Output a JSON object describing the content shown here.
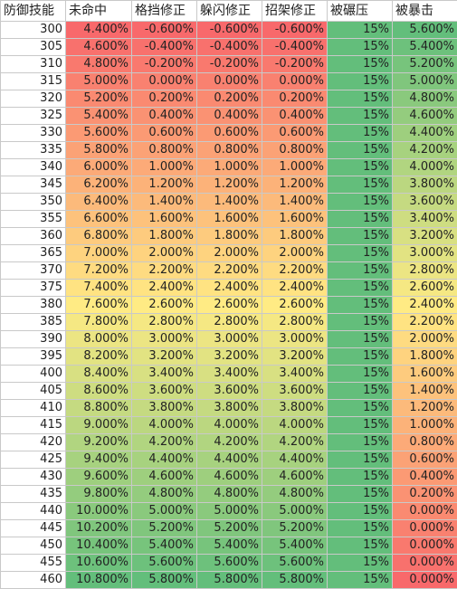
{
  "headers": [
    "防御技能",
    "未命中",
    "格挡修正",
    "躲闪修正",
    "招架修正",
    "被碾压",
    "被暴击"
  ],
  "colors": {
    "red": "#f8696b",
    "yellow": "#ffeb84",
    "green": "#63be7b",
    "grid": "#c9c9c9"
  },
  "rows": [
    [
      "300",
      "4.400%",
      "-0.600%",
      "-0.600%",
      "-0.600%",
      "15%",
      "5.600%"
    ],
    [
      "305",
      "4.600%",
      "-0.400%",
      "-0.400%",
      "-0.400%",
      "15%",
      "5.400%"
    ],
    [
      "310",
      "4.800%",
      "-0.200%",
      "-0.200%",
      "-0.200%",
      "15%",
      "5.200%"
    ],
    [
      "315",
      "5.000%",
      "0.000%",
      "0.000%",
      "0.000%",
      "15%",
      "5.000%"
    ],
    [
      "320",
      "5.200%",
      "0.200%",
      "0.200%",
      "0.200%",
      "15%",
      "4.800%"
    ],
    [
      "325",
      "5.400%",
      "0.400%",
      "0.400%",
      "0.400%",
      "15%",
      "4.600%"
    ],
    [
      "330",
      "5.600%",
      "0.600%",
      "0.600%",
      "0.600%",
      "15%",
      "4.400%"
    ],
    [
      "335",
      "5.800%",
      "0.800%",
      "0.800%",
      "0.800%",
      "15%",
      "4.200%"
    ],
    [
      "340",
      "6.000%",
      "1.000%",
      "1.000%",
      "1.000%",
      "15%",
      "4.000%"
    ],
    [
      "345",
      "6.200%",
      "1.200%",
      "1.200%",
      "1.200%",
      "15%",
      "3.800%"
    ],
    [
      "350",
      "6.400%",
      "1.400%",
      "1.400%",
      "1.400%",
      "15%",
      "3.600%"
    ],
    [
      "355",
      "6.600%",
      "1.600%",
      "1.600%",
      "1.600%",
      "15%",
      "3.400%"
    ],
    [
      "360",
      "6.800%",
      "1.800%",
      "1.800%",
      "1.800%",
      "15%",
      "3.200%"
    ],
    [
      "365",
      "7.000%",
      "2.000%",
      "2.000%",
      "2.000%",
      "15%",
      "3.000%"
    ],
    [
      "370",
      "7.200%",
      "2.200%",
      "2.200%",
      "2.200%",
      "15%",
      "2.800%"
    ],
    [
      "375",
      "7.400%",
      "2.400%",
      "2.400%",
      "2.400%",
      "15%",
      "2.600%"
    ],
    [
      "380",
      "7.600%",
      "2.600%",
      "2.600%",
      "2.600%",
      "15%",
      "2.400%"
    ],
    [
      "385",
      "7.800%",
      "2.800%",
      "2.800%",
      "2.800%",
      "15%",
      "2.200%"
    ],
    [
      "390",
      "8.000%",
      "3.000%",
      "3.000%",
      "3.000%",
      "15%",
      "2.000%"
    ],
    [
      "395",
      "8.200%",
      "3.200%",
      "3.200%",
      "3.200%",
      "15%",
      "1.800%"
    ],
    [
      "400",
      "8.400%",
      "3.400%",
      "3.400%",
      "3.400%",
      "15%",
      "1.600%"
    ],
    [
      "405",
      "8.600%",
      "3.600%",
      "3.600%",
      "3.600%",
      "15%",
      "1.400%"
    ],
    [
      "410",
      "8.800%",
      "3.800%",
      "3.800%",
      "3.800%",
      "15%",
      "1.200%"
    ],
    [
      "415",
      "9.000%",
      "4.000%",
      "4.000%",
      "4.000%",
      "15%",
      "1.000%"
    ],
    [
      "420",
      "9.200%",
      "4.200%",
      "4.200%",
      "4.200%",
      "15%",
      "0.800%"
    ],
    [
      "425",
      "9.400%",
      "4.400%",
      "4.400%",
      "4.400%",
      "15%",
      "0.600%"
    ],
    [
      "430",
      "9.600%",
      "4.600%",
      "4.600%",
      "4.600%",
      "15%",
      "0.400%"
    ],
    [
      "435",
      "9.800%",
      "4.800%",
      "4.800%",
      "4.800%",
      "15%",
      "0.200%"
    ],
    [
      "440",
      "10.000%",
      "5.000%",
      "5.000%",
      "5.000%",
      "15%",
      "0.000%"
    ],
    [
      "445",
      "10.200%",
      "5.200%",
      "5.200%",
      "5.200%",
      "15%",
      "0.000%"
    ],
    [
      "450",
      "10.400%",
      "5.400%",
      "5.400%",
      "5.400%",
      "15%",
      "0.000%"
    ],
    [
      "455",
      "10.600%",
      "5.600%",
      "5.600%",
      "5.600%",
      "15%",
      "0.000%"
    ],
    [
      "460",
      "10.800%",
      "5.800%",
      "5.800%",
      "5.800%",
      "15%",
      "0.000%"
    ]
  ]
}
